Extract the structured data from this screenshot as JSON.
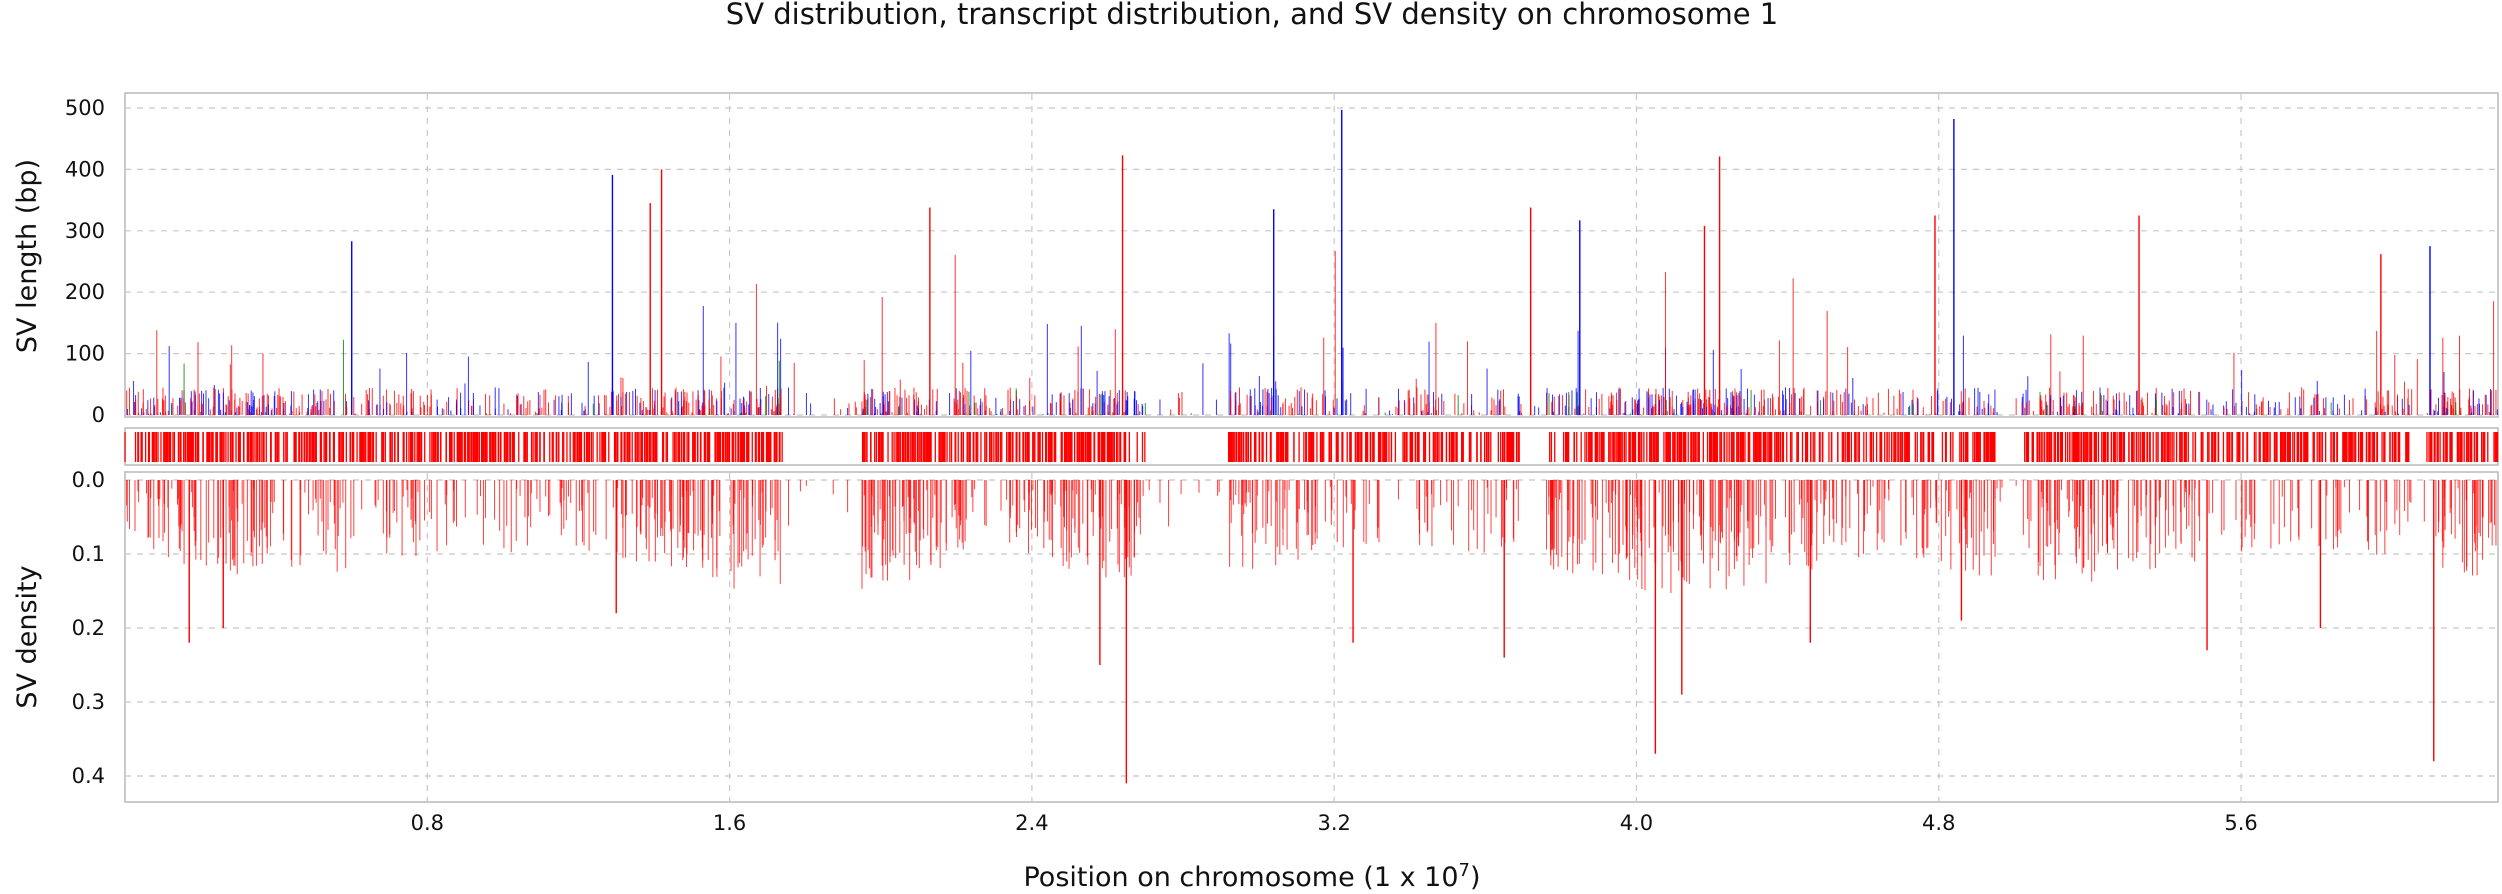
{
  "chart_data": {
    "type": "bar",
    "title": "SV distribution, transcript distribution, and SV density on chromosome 1",
    "xlabel": "Position on chromosome (1 x 10",
    "xlabel_exponent": "7",
    "xlabel_suffix": ")",
    "x_ticks": [
      "0.8",
      "1.6",
      "2.4",
      "3.2",
      "4.0",
      "4.8",
      "5.6"
    ],
    "xlim": [
      0.0,
      6.28
    ],
    "grid": true,
    "panels": [
      {
        "name": "sv-length",
        "type": "bar",
        "ylabel": "SV length (bp)",
        "y_ticks": [
          "0",
          "100",
          "200",
          "300",
          "400",
          "500"
        ],
        "ylim": [
          0,
          520
        ],
        "series_colors": [
          "#ff0000",
          "#0000ff",
          "#008000"
        ],
        "highlight_bars": [
          {
            "x": 0.6,
            "value": 283,
            "color": "#0000ff"
          },
          {
            "x": 1.29,
            "value": 391,
            "color": "#0000ff"
          },
          {
            "x": 1.39,
            "value": 345,
            "color": "#ff0000"
          },
          {
            "x": 1.42,
            "value": 400,
            "color": "#ff0000"
          },
          {
            "x": 2.13,
            "value": 338,
            "color": "#ff0000"
          },
          {
            "x": 2.64,
            "value": 423,
            "color": "#ff0000"
          },
          {
            "x": 3.04,
            "value": 335,
            "color": "#0000ff"
          },
          {
            "x": 3.22,
            "value": 497,
            "color": "#0000ff"
          },
          {
            "x": 3.72,
            "value": 338,
            "color": "#ff0000"
          },
          {
            "x": 3.85,
            "value": 317,
            "color": "#0000ff"
          },
          {
            "x": 4.22,
            "value": 421,
            "color": "#ff0000"
          },
          {
            "x": 4.18,
            "value": 308,
            "color": "#ff0000"
          },
          {
            "x": 4.84,
            "value": 482,
            "color": "#0000ff"
          },
          {
            "x": 4.79,
            "value": 325,
            "color": "#ff0000"
          },
          {
            "x": 5.33,
            "value": 325,
            "color": "#ff0000"
          },
          {
            "x": 5.97,
            "value": 262,
            "color": "#ff0000"
          },
          {
            "x": 6.1,
            "value": 275,
            "color": "#0000ff"
          }
        ]
      },
      {
        "name": "transcript-distribution",
        "type": "bar",
        "color": "#ff0000",
        "empty_intervals": [
          [
            1.74,
            1.95
          ],
          [
            2.7,
            2.92
          ],
          [
            3.7,
            3.76
          ],
          [
            4.95,
            5.02
          ],
          [
            6.05,
            6.09
          ]
        ]
      },
      {
        "name": "sv-density",
        "type": "bar",
        "ylabel": "SV density",
        "y_ticks": [
          "0.0",
          "0.1",
          "0.2",
          "0.3",
          "0.4"
        ],
        "ylim": [
          0.0,
          0.43
        ],
        "inverted": true,
        "color": "#ff0000",
        "highlight_bars": [
          {
            "x": 0.17,
            "value": 0.22
          },
          {
            "x": 0.26,
            "value": 0.2
          },
          {
            "x": 1.3,
            "value": 0.18
          },
          {
            "x": 2.58,
            "value": 0.25
          },
          {
            "x": 2.65,
            "value": 0.41
          },
          {
            "x": 3.25,
            "value": 0.22
          },
          {
            "x": 3.65,
            "value": 0.24
          },
          {
            "x": 4.05,
            "value": 0.37
          },
          {
            "x": 4.12,
            "value": 0.29
          },
          {
            "x": 4.46,
            "value": 0.22
          },
          {
            "x": 4.86,
            "value": 0.19
          },
          {
            "x": 5.51,
            "value": 0.23
          },
          {
            "x": 5.81,
            "value": 0.2
          },
          {
            "x": 6.11,
            "value": 0.38
          }
        ]
      }
    ]
  }
}
